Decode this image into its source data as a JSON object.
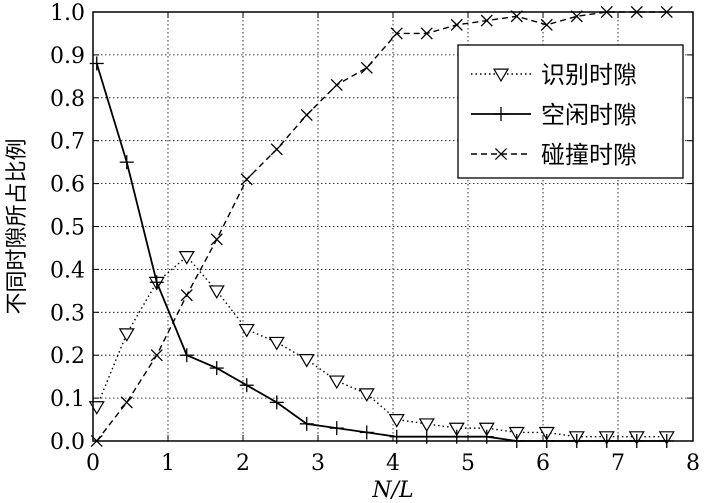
{
  "chart_data": {
    "type": "line",
    "xlabel": "N/L",
    "ylabel": "不同时隙所占比例",
    "xlim": [
      0,
      8
    ],
    "ylim": [
      0,
      1.0
    ],
    "xticks": [
      "0",
      "1",
      "2",
      "3",
      "4",
      "5",
      "6",
      "7",
      "8"
    ],
    "yticks": [
      "0.0",
      "0.1",
      "0.2",
      "0.3",
      "0.4",
      "0.5",
      "0.6",
      "0.7",
      "0.8",
      "0.9",
      "1.0"
    ],
    "grid": true,
    "legend_position": "top-right",
    "x": [
      0.05,
      0.45,
      0.85,
      1.25,
      1.65,
      2.05,
      2.45,
      2.85,
      3.25,
      3.65,
      4.05,
      4.45,
      4.85,
      5.25,
      5.65,
      6.05,
      6.45,
      6.85,
      7.25,
      7.65
    ],
    "series": [
      {
        "name": "识别时隙",
        "line_style": "dotted",
        "marker": "triangle-down",
        "values": [
          0.08,
          0.25,
          0.37,
          0.43,
          0.35,
          0.26,
          0.23,
          0.19,
          0.14,
          0.11,
          0.05,
          0.04,
          0.03,
          0.03,
          0.02,
          0.02,
          0.01,
          0.01,
          0.01,
          0.01
        ]
      },
      {
        "name": "空闲时隙",
        "line_style": "solid",
        "marker": "plus",
        "values": [
          0.88,
          0.65,
          0.37,
          0.2,
          0.17,
          0.13,
          0.09,
          0.04,
          0.03,
          0.02,
          0.01,
          0.01,
          0.01,
          0.01,
          0.0,
          0.0,
          0.0,
          0.0,
          0.0,
          0.0
        ]
      },
      {
        "name": "碰撞时隙",
        "line_style": "dashed",
        "marker": "x",
        "values": [
          0.0,
          0.09,
          0.2,
          0.34,
          0.47,
          0.61,
          0.68,
          0.76,
          0.83,
          0.87,
          0.95,
          0.95,
          0.97,
          0.98,
          0.99,
          0.97,
          0.99,
          1.0,
          1.0,
          1.0
        ]
      }
    ]
  }
}
